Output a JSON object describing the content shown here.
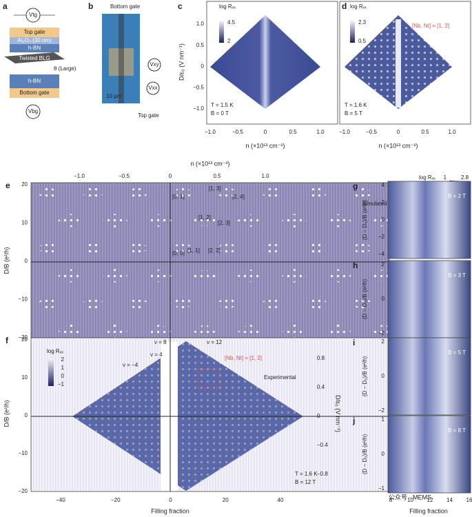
{
  "panel_a": {
    "label": "a",
    "vtg": "Vtg",
    "top_gate": "Top gate",
    "oxide": "Al₂O₃ (30 nm)",
    "hbn_top": "h-BN",
    "blg": "Twisted BLG",
    "theta": "θ (Large)",
    "hbn_bottom": "h-BN",
    "bottom_gate": "Bottom gate",
    "vbg": "Vbg"
  },
  "panel_b": {
    "label": "b",
    "bottom_gate": "Bottom gate",
    "vxy": "Vxy",
    "vxx": "Vxx",
    "scale": "10 μm",
    "top_gate": "Top gate"
  },
  "panel_c": {
    "label": "c",
    "cbar_title": "log Rₓₓ",
    "cbar_max": "4.5",
    "cbar_min": "2",
    "ylabel": "D/ε₀ (V nm⁻¹)",
    "yticks": [
      "1.0",
      "0.5",
      "0",
      "−0.5",
      "−1.0"
    ],
    "xticks": [
      "−1.0",
      "−0.5",
      "0",
      "0.5",
      "1.0"
    ],
    "xlabel": "n (×10¹³ cm⁻²)",
    "temp": "T = 1.5 K",
    "field": "B = 0 T"
  },
  "panel_d": {
    "label": "d",
    "cbar_title": "log Rₓₓ",
    "cbar_max": "2.3",
    "cbar_min": "0.5",
    "annotation": "[Nb, Nt] = [1, 2]",
    "xticks": [
      "−1.0",
      "−0.5",
      "0",
      "0.5",
      "1.0"
    ],
    "xlabel": "n (×10¹³ cm⁻²)",
    "temp": "T = 1.6 K",
    "field": "B = 5 T"
  },
  "panel_e": {
    "label": "e",
    "top_xlabel": "n (×10¹³ cm⁻²)",
    "top_xticks": [
      "−1.0",
      "−0.5",
      "0",
      "0.5",
      "1.0"
    ],
    "yticks": [
      "20",
      "10",
      "0",
      "−10",
      "−20"
    ],
    "ylabel": "D/B (e²/h)",
    "states": [
      "[0, 1]",
      "[1, 3]",
      "[2, 4]",
      "[1, 2]",
      "[2, 3]",
      "[0, 0]",
      "[1, 1]",
      "[2, 2]"
    ],
    "note": "Simulated"
  },
  "panel_f": {
    "label": "f",
    "cbar_title": "log Rₓₓ",
    "cbar_ticks": [
      "2",
      "1",
      "0",
      "−1"
    ],
    "nu": [
      "ν = 8",
      "ν = 12",
      "ν = 4",
      "ν = −4"
    ],
    "annotation": "[Nb, Nt] = [1, 2]",
    "note": "Experimental",
    "yticks": [
      "20",
      "10",
      "0",
      "−10",
      "−20"
    ],
    "ylabel": "D/B (e²/h)",
    "right_ticks": [
      "0.8",
      "0.4",
      "0",
      "−0.4",
      "−0.8"
    ],
    "right_label": "D/ε₀ (V nm⁻¹)",
    "xticks": [
      "−40",
      "−20",
      "0",
      "20",
      "40"
    ],
    "xlabel": "Filling fraction",
    "temp": "T = 1.6 K",
    "field": "B = 12 T"
  },
  "panel_gj": {
    "cbar_title": "log Rₓₓ",
    "cbar_min": "1",
    "cbar_max": "2.8",
    "ylabel": "(D − D₀)/B (e²/h)",
    "xticks": [
      "8",
      "10",
      "12",
      "14",
      "16"
    ],
    "xlabel": "Filling fraction",
    "panels": [
      {
        "label": "g",
        "field": "B = 2 T",
        "yticks": [
          "4",
          "2",
          "0",
          "−2",
          "−4"
        ]
      },
      {
        "label": "h",
        "field": "B = 3 T",
        "yticks": [
          "2",
          "0",
          "−2"
        ]
      },
      {
        "label": "i",
        "field": "B = 5 T",
        "yticks": [
          "2",
          "0",
          "−2"
        ]
      },
      {
        "label": "j",
        "field": "B = 8 T",
        "yticks": [
          "1",
          "0",
          "−1"
        ]
      }
    ]
  },
  "watermark": "公众号 · MEMS"
}
